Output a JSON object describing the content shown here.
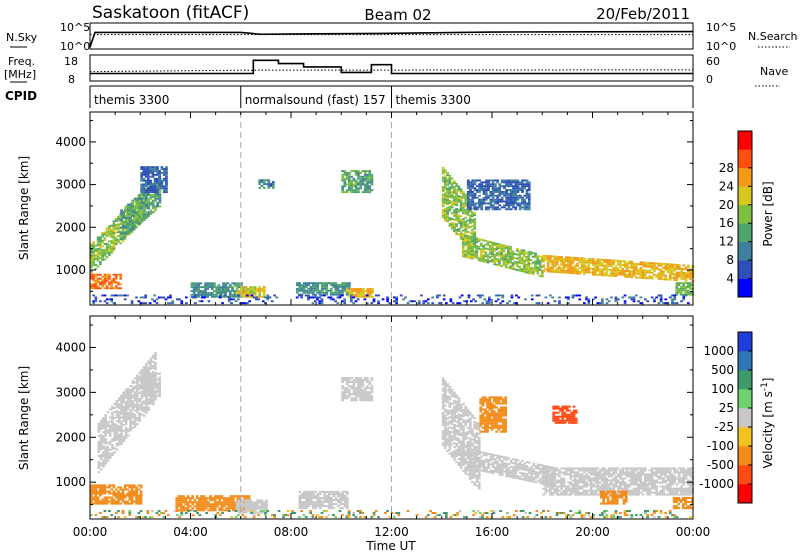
{
  "header": {
    "radar": "Saskatoon (fitACF)",
    "beam": "Beam 02",
    "date": "20/Feb/2011"
  },
  "noise_panel": {
    "left_label": "N.Sky",
    "left_ticks": [
      "10^5",
      "10^0"
    ],
    "right_ticks": [
      "10^5",
      "10^0"
    ],
    "right_label": "N.Search"
  },
  "freq_panel": {
    "left_label_1": "Freq.",
    "left_label_2": "[MHz]",
    "left_ticks": [
      "18",
      "8"
    ],
    "right_ticks": [
      "60",
      "0"
    ],
    "right_label": "Nave"
  },
  "cpid_panel": {
    "label": "CPID",
    "segments": [
      {
        "name": "themis 3300",
        "start_hour": 0
      },
      {
        "name": "normalsound (fast) 157",
        "start_hour": 6
      },
      {
        "name": "themis 3300",
        "start_hour": 12
      }
    ]
  },
  "time_axis": {
    "label": "Time UT",
    "ticks": [
      "00:00",
      "04:00",
      "08:00",
      "12:00",
      "16:00",
      "20:00",
      "00:00"
    ],
    "tick_hours": [
      0,
      4,
      8,
      12,
      16,
      20,
      24
    ],
    "range_hours": [
      0,
      24
    ]
  },
  "range_axis": {
    "label": "Slant Range [km]",
    "ticks": [
      "1000",
      "2000",
      "3000",
      "4000"
    ],
    "tick_values": [
      1000,
      2000,
      3000,
      4000
    ],
    "range_km": [
      180,
      4700
    ]
  },
  "power_colorbar": {
    "label": "Power [dB]",
    "ticks": [
      "4",
      "8",
      "12",
      "16",
      "20",
      "24",
      "28"
    ],
    "colors": [
      "#0000ff",
      "#2f4fb8",
      "#3f7f9f",
      "#4fa56b",
      "#7fbf3f",
      "#d6c81e",
      "#f29a16",
      "#ff5010",
      "#ff0000"
    ]
  },
  "velocity_colorbar": {
    "label": "Velocity [m s^-1]",
    "ticks": [
      "1000",
      "500",
      "100",
      "25",
      "-25",
      "-100",
      "-500",
      "-1000"
    ],
    "colors": [
      "#1f3fd8",
      "#2f77b4",
      "#3f9a6a",
      "#6fd26f",
      "#c8c8c8",
      "#f2c21e",
      "#f28c1a",
      "#ff4a16",
      "#ff0000"
    ]
  },
  "chart_data": [
    {
      "type": "line",
      "title": "",
      "series": [
        {
          "name": "N.Sky",
          "values_hours": [
            0,
            0.2,
            6,
            6.8,
            9,
            12,
            16,
            24
          ],
          "values_log10": [
            0,
            3.3,
            3.3,
            2.9,
            3.0,
            3.1,
            3.4,
            3.5
          ]
        },
        {
          "name": "N.Search",
          "values_hours": [
            0,
            24
          ],
          "values_log10": [
            2.8,
            2.8
          ]
        }
      ],
      "ylim_log10": [
        0,
        5
      ]
    },
    {
      "type": "line",
      "title": "",
      "series": [
        {
          "name": "Freq.",
          "x": [
            0,
            6.5,
            6.5,
            7.5,
            7.5,
            8.5,
            8.5,
            10,
            10,
            11.2,
            11.2,
            12,
            12,
            24
          ],
          "y": [
            10.5,
            10.5,
            16.5,
            16.5,
            15,
            15,
            13.5,
            13.5,
            11,
            11,
            14.5,
            14.5,
            10.5,
            10.5
          ]
        },
        {
          "name": "Nave",
          "x": [
            0,
            6,
            24
          ],
          "y": [
            20,
            24,
            25
          ]
        }
      ],
      "ylim_freq": [
        8,
        18
      ],
      "ylim_nave": [
        0,
        60
      ]
    },
    {
      "type": "heatmap",
      "title": "Power [dB]",
      "xlabel": "Time UT",
      "ylabel": "Slant Range [km]",
      "xlim": [
        0,
        24
      ],
      "ylim": [
        180,
        4700
      ],
      "features": [
        {
          "kind": "band",
          "t0": 0,
          "t1": 1.2,
          "r0": 550,
          "r1": 900,
          "value": 28
        },
        {
          "kind": "band",
          "t0": 0,
          "t1": 2.2,
          "r0": 900,
          "r1": 1600,
          "value": 18,
          "slope": 600
        },
        {
          "kind": "band",
          "t0": 1.2,
          "t1": 2.8,
          "r0": 1700,
          "r1": 2400,
          "value": 14,
          "slope": 500
        },
        {
          "kind": "band",
          "t0": 2.0,
          "t1": 3.0,
          "r0": 2800,
          "r1": 3400,
          "value": 8
        },
        {
          "kind": "band",
          "t0": 4.0,
          "t1": 6.0,
          "r0": 350,
          "r1": 700,
          "value": 12
        },
        {
          "kind": "band",
          "t0": 5.8,
          "t1": 6.9,
          "r0": 350,
          "r1": 600,
          "value": 22
        },
        {
          "kind": "band",
          "t0": 6.7,
          "t1": 7.3,
          "r0": 2900,
          "r1": 3100,
          "value": 10
        },
        {
          "kind": "band",
          "t0": 8.2,
          "t1": 10.3,
          "r0": 400,
          "r1": 700,
          "value": 12
        },
        {
          "kind": "band",
          "t0": 10.0,
          "t1": 11.2,
          "r0": 2800,
          "r1": 3300,
          "value": 14
        },
        {
          "kind": "band",
          "t0": 10.2,
          "t1": 11.2,
          "r0": 350,
          "r1": 550,
          "value": 24
        },
        {
          "kind": "band",
          "t0": 14.0,
          "t1": 15.3,
          "r0": 2200,
          "r1": 3400,
          "value": 18,
          "slope": -700
        },
        {
          "kind": "band",
          "t0": 14.8,
          "t1": 18.0,
          "r0": 1300,
          "r1": 1800,
          "value": 18,
          "slope": -150
        },
        {
          "kind": "band",
          "t0": 18.0,
          "t1": 24.0,
          "r0": 950,
          "r1": 1350,
          "value": 24,
          "slope": -40
        },
        {
          "kind": "band",
          "t0": 15.0,
          "t1": 17.5,
          "r0": 2400,
          "r1": 3100,
          "value": 8
        },
        {
          "kind": "band",
          "t0": 23.3,
          "t1": 24.0,
          "r0": 400,
          "r1": 700,
          "value": 16
        },
        {
          "kind": "noise",
          "t0": 0,
          "t1": 24,
          "r0": 200,
          "r1": 400,
          "value": 6
        }
      ]
    },
    {
      "type": "heatmap",
      "title": "Velocity [m s^-1]",
      "xlabel": "Time UT",
      "ylabel": "Slant Range [km]",
      "xlim": [
        0,
        24
      ],
      "ylim": [
        180,
        4700
      ],
      "features": [
        {
          "kind": "band",
          "t0": 0,
          "t1": 2.0,
          "r0": 500,
          "r1": 950,
          "value": -300
        },
        {
          "kind": "band",
          "t0": 0.3,
          "t1": 2.6,
          "r0": 1200,
          "r1": 2300,
          "value": 0,
          "slope": 700
        },
        {
          "kind": "band",
          "t0": 2.0,
          "t1": 2.8,
          "r0": 2900,
          "r1": 3400,
          "value": 0
        },
        {
          "kind": "band",
          "t0": 3.4,
          "t1": 6.3,
          "r0": 350,
          "r1": 700,
          "value": -250
        },
        {
          "kind": "band",
          "t0": 5.8,
          "t1": 7.0,
          "r0": 300,
          "r1": 600,
          "value": 0
        },
        {
          "kind": "band",
          "t0": 8.3,
          "t1": 10.2,
          "r0": 400,
          "r1": 800,
          "value": 0
        },
        {
          "kind": "band",
          "t0": 10.0,
          "t1": 11.2,
          "r0": 2800,
          "r1": 3300,
          "value": 0
        },
        {
          "kind": "band",
          "t0": 14.0,
          "t1": 15.5,
          "r0": 1800,
          "r1": 3300,
          "value": 0,
          "slope": -700
        },
        {
          "kind": "band",
          "t0": 15.0,
          "t1": 18.5,
          "r0": 1300,
          "r1": 1750,
          "value": 0,
          "slope": -120
        },
        {
          "kind": "band",
          "t0": 18.0,
          "t1": 24.0,
          "r0": 700,
          "r1": 1300,
          "value": 0
        },
        {
          "kind": "band",
          "t0": 15.5,
          "t1": 16.5,
          "r0": 2100,
          "r1": 2900,
          "value": -200
        },
        {
          "kind": "band",
          "t0": 18.4,
          "t1": 19.3,
          "r0": 2300,
          "r1": 2700,
          "value": -600
        },
        {
          "kind": "band",
          "t0": 20.3,
          "t1": 21.3,
          "r0": 500,
          "r1": 800,
          "value": -300
        },
        {
          "kind": "band",
          "t0": 23.2,
          "t1": 24.0,
          "r0": 400,
          "r1": 650,
          "value": -200
        },
        {
          "kind": "noise",
          "t0": 0,
          "t1": 24,
          "r0": 200,
          "r1": 380,
          "value": 60
        }
      ]
    }
  ]
}
